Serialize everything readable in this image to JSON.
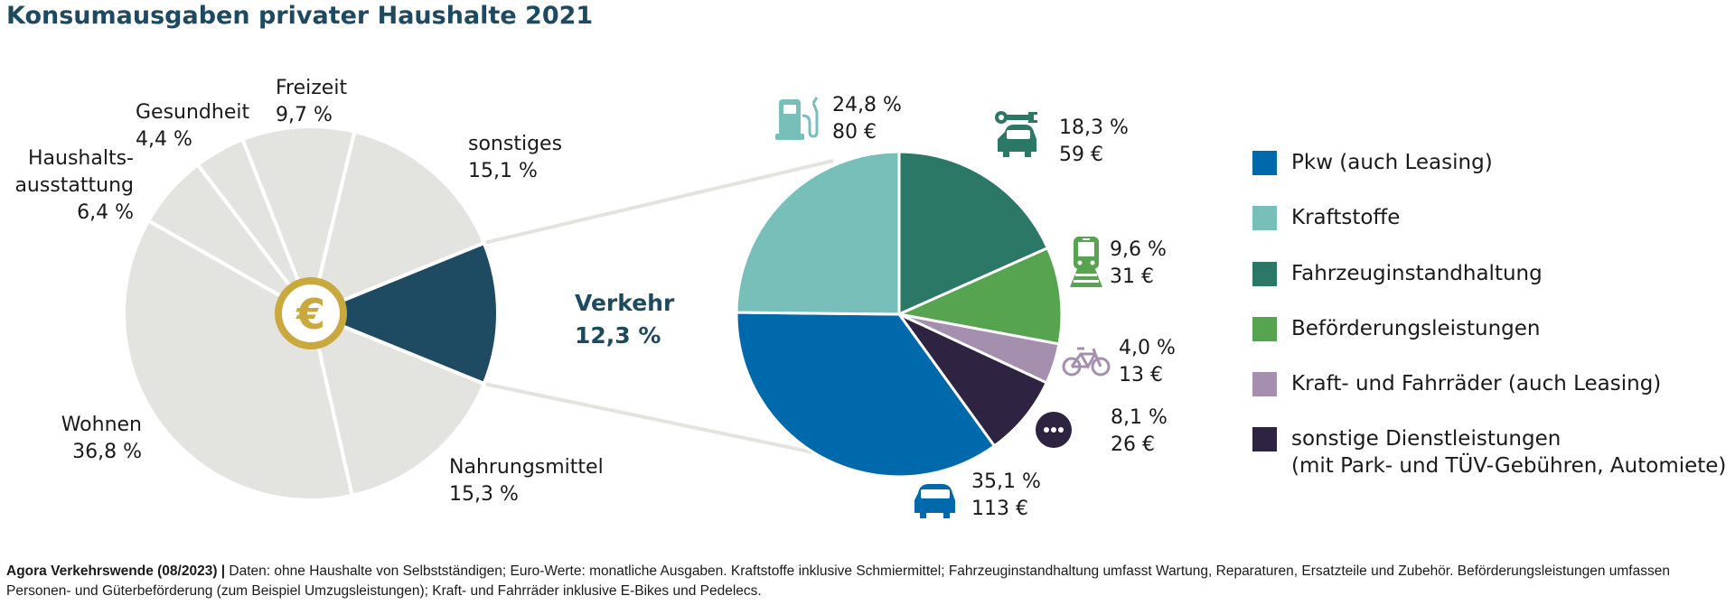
{
  "title": "Konsumausgaben privater Haushalte 2021",
  "chart_data": [
    {
      "type": "pie",
      "title": "Konsumausgaben privater Haushalte 2021",
      "center_icon": "euro-coin-icon",
      "highlight": "Verkehr",
      "slices": [
        {
          "name": "Verkehr",
          "label_name": "Verkehr",
          "value": 12.3,
          "label_value": "12,3 %",
          "color": "#1e4a62"
        },
        {
          "name": "sonstiges",
          "label_name": "sonstiges",
          "value": 15.1,
          "label_value": "15,1 %",
          "color": "#e3e3df"
        },
        {
          "name": "Freizeit",
          "label_name": "Freizeit",
          "value": 9.7,
          "label_value": "9,7 %",
          "color": "#e3e3df"
        },
        {
          "name": "Gesundheit",
          "label_name": "Gesundheit",
          "value": 4.4,
          "label_value": "4,4 %",
          "color": "#e3e3df"
        },
        {
          "name": "Haushaltsausstattung",
          "label_name": [
            "Haushalts-",
            "ausstattung"
          ],
          "value": 6.4,
          "label_value": "6,4 %",
          "color": "#e3e3df"
        },
        {
          "name": "Wohnen",
          "label_name": "Wohnen",
          "value": 36.8,
          "label_value": "36,8 %",
          "color": "#e3e3df"
        },
        {
          "name": "Nahrungsmittel",
          "label_name": "Nahrungsmittel",
          "value": 15.3,
          "label_value": "15,3 %",
          "color": "#e3e3df"
        }
      ]
    },
    {
      "type": "pie",
      "title": "Verkehr 12,3 %",
      "unit_note": "Euro-Werte: monatliche Ausgaben",
      "slices": [
        {
          "name": "Kraftstoffe",
          "value": 24.8,
          "label_value": "24,8 %",
          "euro": "80 €",
          "color": "#78bfba",
          "icon": "fuel-pump-icon"
        },
        {
          "name": "Fahrzeuginstandhaltung",
          "value": 18.3,
          "label_value": "18,3 %",
          "euro": "59 €",
          "color": "#2c7866",
          "icon": "car-repair-icon"
        },
        {
          "name": "Beförderungsleistungen",
          "value": 9.6,
          "label_value": "9,6 %",
          "euro": "31 €",
          "color": "#57a450",
          "icon": "train-icon"
        },
        {
          "name": "Kraft- und Fahrräder (auch Leasing)",
          "value": 4.0,
          "label_value": "4,0 %",
          "euro": "13 €",
          "color": "#a48fae",
          "icon": "bicycle-icon"
        },
        {
          "name": "sonstige Dienstleistungen (mit Park- und TÜV-Gebühren, Automiete)",
          "value": 8.1,
          "label_value": "8,1 %",
          "euro": "26 €",
          "color": "#2e2340",
          "icon": "more-dots-icon"
        },
        {
          "name": "Pkw (auch Leasing)",
          "value": 35.1,
          "label_value": "35,1 %",
          "euro": "113 €",
          "color": "#0069ab",
          "icon": "car-icon"
        }
      ]
    }
  ],
  "verkehr_label": {
    "name": "Verkehr",
    "value": "12,3 %"
  },
  "legend": [
    {
      "label": "Pkw (auch Leasing)",
      "color": "#0069ab"
    },
    {
      "label": "Kraftstoffe",
      "color": "#78bfba"
    },
    {
      "label": "Fahrzeuginstandhaltung",
      "color": "#2c7866"
    },
    {
      "label": "Beförderungsleistungen",
      "color": "#57a450"
    },
    {
      "label": "Kraft- und Fahrräder (auch Leasing)",
      "color": "#a48fae"
    },
    {
      "label": "sonstige Dienstleistungen",
      "label2": "(mit Park- und TÜV-Gebühren, Automiete)",
      "color": "#2e2340"
    }
  ],
  "footer": {
    "source": "Agora Verkehrswende (08/2023) |",
    "text": " Daten: ohne Haushalte von Selbstständigen; Euro-Werte: monatliche Ausgaben. Kraftstoffe inklusive Schmiermittel; Fahrzeuginstandhaltung umfasst Wartung, Reparaturen, Ersatzteile und Zubehör. Beförderungsleistungen umfassen Personen- und Güterbeförderung (zum Beispiel Umzugsleistungen); Kraft- und Fahrräder inklusive E-Bikes und Pedelecs."
  }
}
